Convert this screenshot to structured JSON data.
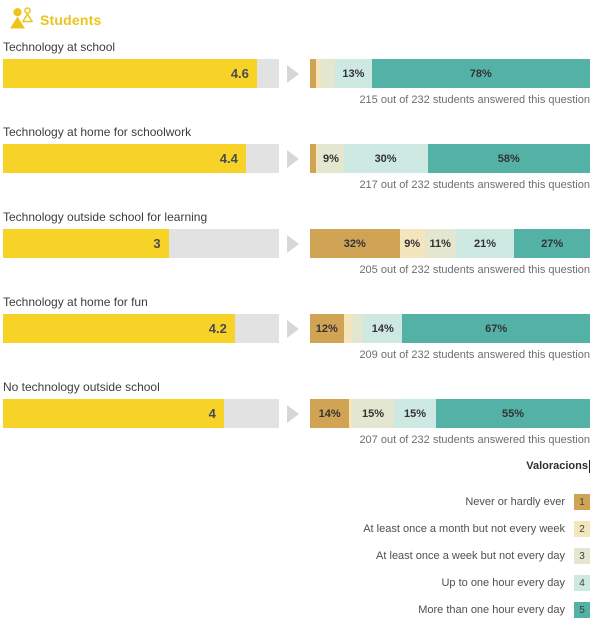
{
  "header": {
    "title": "Students",
    "accent_color": "#ecc41c"
  },
  "colors": {
    "score_bar": "#f6d326",
    "score_track": "#e2e2e2",
    "arrow": "#d7d7d7"
  },
  "chart_data": {
    "type": "bar",
    "title": "Students",
    "score_scale": [
      0,
      5
    ],
    "total_respondents": 232,
    "legend_position": "bottom-right",
    "legend_title": "Valoracions",
    "legend": [
      {
        "value": "1",
        "label": "Never or hardly ever",
        "color": "#d1a455"
      },
      {
        "value": "2",
        "label": "At least once a month but not every week",
        "color": "#f5e5bc"
      },
      {
        "value": "3",
        "label": "At least once a week but not every day",
        "color": "#e4e7d0"
      },
      {
        "value": "4",
        "label": "Up to one hour every day",
        "color": "#cde9e1"
      },
      {
        "value": "5",
        "label": "More than one hour every day",
        "color": "#54b1a6"
      }
    ],
    "questions": [
      {
        "label": "Technology at school",
        "score": "4.6",
        "score_value": 4.6,
        "distribution_pct": [
          2,
          2,
          5,
          13,
          78
        ],
        "segment_labels": [
          "",
          "",
          "",
          "13%",
          "78%"
        ],
        "answered": 215,
        "caption": "215 out of 232 students answered this question"
      },
      {
        "label": "Technology at home for schoolwork",
        "score": "4.4",
        "score_value": 4.4,
        "distribution_pct": [
          2,
          1,
          9,
          30,
          58
        ],
        "segment_labels": [
          "",
          "",
          "9%",
          "30%",
          "58%"
        ],
        "answered": 217,
        "caption": "217 out of 232 students answered this question"
      },
      {
        "label": "Technology outside school for learning",
        "score": "3",
        "score_value": 3,
        "distribution_pct": [
          32,
          9,
          11,
          21,
          27
        ],
        "segment_labels": [
          "32%",
          "9%",
          "11%",
          "21%",
          "27%"
        ],
        "answered": 205,
        "caption": "205 out of 232 students answered this question"
      },
      {
        "label": "Technology at home for fun",
        "score": "4.2",
        "score_value": 4.2,
        "distribution_pct": [
          12,
          3,
          4,
          14,
          67
        ],
        "segment_labels": [
          "12%",
          "",
          "",
          "14%",
          "67%"
        ],
        "answered": 209,
        "caption": "209 out of 232 students answered this question"
      },
      {
        "label": "No technology outside school",
        "score": "4",
        "score_value": 4,
        "distribution_pct": [
          14,
          1,
          15,
          15,
          55
        ],
        "segment_labels": [
          "14%",
          "",
          "15%",
          "15%",
          "55%"
        ],
        "answered": 207,
        "caption": "207 out of 232 students answered this question"
      }
    ]
  }
}
